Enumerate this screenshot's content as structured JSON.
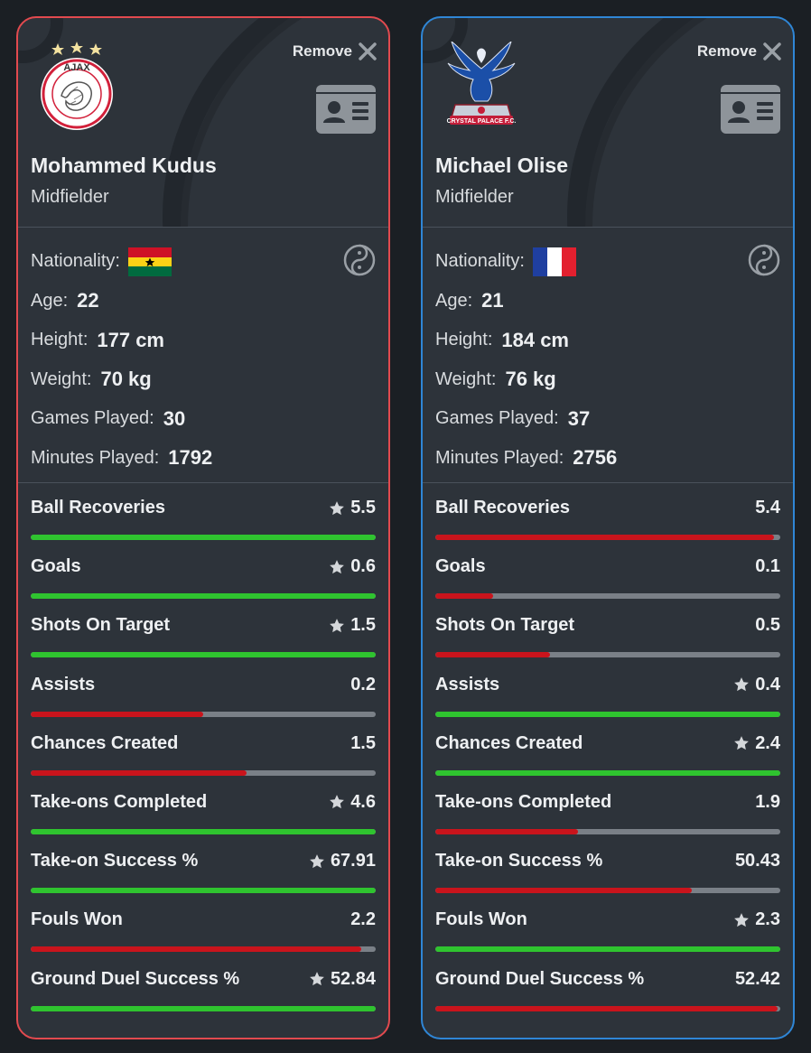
{
  "remove_label": "Remove",
  "colors": {
    "win": "#2fc42f",
    "lose": "#c9141c",
    "track": "#7a8087",
    "left_border": "#e24a4f",
    "right_border": "#2f86d6"
  },
  "labels": {
    "nationality": "Nationality:",
    "age": "Age:",
    "height": "Height:",
    "weight": "Weight:",
    "games": "Games Played:",
    "minutes": "Minutes Played:"
  },
  "players": [
    {
      "club_crest": "ajax-crest",
      "name": "Mohammed Kudus",
      "position": "Midfielder",
      "nationality_flag": "ghana-flag",
      "age": "22",
      "height": "177 cm",
      "weight": "70 kg",
      "games_played": "30",
      "minutes_played": "1792",
      "stats": [
        {
          "label": "Ball Recoveries",
          "value": "5.5",
          "star": true,
          "fill": 1.0
        },
        {
          "label": "Goals",
          "value": "0.6",
          "star": true,
          "fill": 1.0
        },
        {
          "label": "Shots On Target",
          "value": "1.5",
          "star": true,
          "fill": 1.0
        },
        {
          "label": "Assists",
          "value": "0.2",
          "star": false,
          "fill": 0.5
        },
        {
          "label": "Chances Created",
          "value": "1.5",
          "star": false,
          "fill": 0.625
        },
        {
          "label": "Take-ons Completed",
          "value": "4.6",
          "star": true,
          "fill": 1.0
        },
        {
          "label": "Take-on Success %",
          "value": "67.91",
          "star": true,
          "fill": 1.0
        },
        {
          "label": "Fouls Won",
          "value": "2.2",
          "star": false,
          "fill": 0.957
        },
        {
          "label": "Ground Duel Success %",
          "value": "52.84",
          "star": true,
          "fill": 1.0
        }
      ]
    },
    {
      "club_crest": "crystal-palace-crest",
      "name": "Michael Olise",
      "position": "Midfielder",
      "nationality_flag": "france-flag",
      "age": "21",
      "height": "184 cm",
      "weight": "76 kg",
      "games_played": "37",
      "minutes_played": "2756",
      "stats": [
        {
          "label": "Ball Recoveries",
          "value": "5.4",
          "star": false,
          "fill": 0.982
        },
        {
          "label": "Goals",
          "value": "0.1",
          "star": false,
          "fill": 0.167
        },
        {
          "label": "Shots On Target",
          "value": "0.5",
          "star": false,
          "fill": 0.333
        },
        {
          "label": "Assists",
          "value": "0.4",
          "star": true,
          "fill": 1.0
        },
        {
          "label": "Chances Created",
          "value": "2.4",
          "star": true,
          "fill": 1.0
        },
        {
          "label": "Take-ons Completed",
          "value": "1.9",
          "star": false,
          "fill": 0.413
        },
        {
          "label": "Take-on Success %",
          "value": "50.43",
          "star": false,
          "fill": 0.743
        },
        {
          "label": "Fouls Won",
          "value": "2.3",
          "star": true,
          "fill": 1.0
        },
        {
          "label": "Ground Duel Success %",
          "value": "52.42",
          "star": false,
          "fill": 0.992
        }
      ]
    }
  ]
}
